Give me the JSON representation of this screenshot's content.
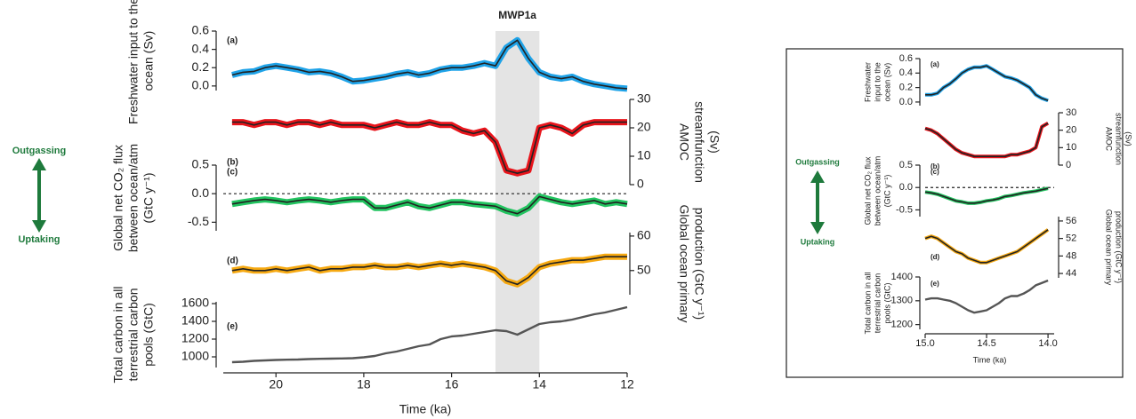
{
  "chart_data": [
    {
      "type": "line",
      "panel_label": "(a)",
      "ylabel": [
        "Freshwater input to the",
        "ocean (Sv)"
      ],
      "annotation": "MWP1a",
      "shade": [
        15,
        14
      ],
      "x": [
        21,
        20.75,
        20.5,
        20.25,
        20,
        19.75,
        19.5,
        19.25,
        19,
        18.75,
        18.5,
        18.25,
        18,
        17.75,
        17.5,
        17.25,
        17,
        16.75,
        16.5,
        16.25,
        16,
        15.75,
        15.5,
        15.25,
        15,
        14.75,
        14.5,
        14.25,
        14,
        13.75,
        13.5,
        13.25,
        13,
        12.75,
        12.5,
        12.25,
        12
      ],
      "xlim": [
        21.2,
        12
      ],
      "ylim": [
        -0.05,
        0.6
      ],
      "yticks": [
        {
          "value": 0,
          "label": "0.0"
        },
        0.2,
        0.4,
        0.6
      ],
      "y_axis_side": "left",
      "series": [
        {
          "color": "#1fa3e8",
          "line_color": "#222222",
          "values": [
            0.12,
            0.15,
            0.16,
            0.2,
            0.22,
            0.2,
            0.18,
            0.15,
            0.16,
            0.14,
            0.1,
            0.05,
            0.06,
            0.08,
            0.1,
            0.13,
            0.15,
            0.12,
            0.14,
            0.18,
            0.2,
            0.2,
            0.22,
            0.25,
            0.22,
            0.42,
            0.5,
            0.3,
            0.15,
            0.1,
            0.08,
            0.1,
            0.05,
            0.02,
            0,
            -0.02,
            -0.03
          ]
        }
      ]
    },
    {
      "type": "line",
      "panel_label": "(b)",
      "ylabel": [
        "AMOC",
        "streamfunction",
        "(Sv)"
      ],
      "x": [
        21,
        20.75,
        20.5,
        20.25,
        20,
        19.75,
        19.5,
        19.25,
        19,
        18.75,
        18.5,
        18.25,
        18,
        17.75,
        17.5,
        17.25,
        17,
        16.75,
        16.5,
        16.25,
        16,
        15.75,
        15.5,
        15.25,
        15,
        14.75,
        14.5,
        14.25,
        14,
        13.75,
        13.5,
        13.25,
        13,
        12.75,
        12.5,
        12.25,
        12
      ],
      "xlim": [
        21.2,
        12
      ],
      "ylim": [
        0,
        30
      ],
      "yticks": [
        0,
        10,
        20,
        30
      ],
      "y_axis_side": "right",
      "series": [
        {
          "color": "#e8141b",
          "line_color": "#222222",
          "values": [
            22,
            22,
            21,
            22,
            22,
            21,
            22,
            22,
            21,
            22,
            21,
            21,
            21,
            20,
            21,
            22,
            21,
            21,
            22,
            21,
            21,
            19,
            18,
            19,
            15,
            5,
            4,
            5,
            20,
            21,
            20,
            18,
            21,
            22,
            22,
            22,
            22
          ]
        }
      ]
    },
    {
      "type": "line",
      "panel_label": "(c)",
      "ylabel": [
        "Global net CO₂ flux",
        "between ocean/atm",
        "(GtC y⁻¹)"
      ],
      "arrow_labels": [
        "Outgassing",
        "Uptaking"
      ],
      "zero_line": true,
      "x": [
        21,
        20.75,
        20.5,
        20.25,
        20,
        19.75,
        19.5,
        19.25,
        19,
        18.75,
        18.5,
        18.25,
        18,
        17.75,
        17.5,
        17.25,
        17,
        16.75,
        16.5,
        16.25,
        16,
        15.75,
        15.5,
        15.25,
        15,
        14.75,
        14.5,
        14.25,
        14,
        13.75,
        13.5,
        13.25,
        13,
        12.75,
        12.5,
        12.25,
        12
      ],
      "xlim": [
        21.2,
        12
      ],
      "ylim": [
        -0.65,
        0.5
      ],
      "yticks": [
        -0.5,
        {
          "value": 0,
          "label": "0.0"
        },
        0.5
      ],
      "y_axis_side": "left",
      "series": [
        {
          "color": "#22c460",
          "line_color": "#222222",
          "values": [
            -0.18,
            -0.15,
            -0.12,
            -0.1,
            -0.12,
            -0.15,
            -0.12,
            -0.1,
            -0.12,
            -0.15,
            -0.12,
            -0.1,
            -0.1,
            -0.25,
            -0.25,
            -0.2,
            -0.15,
            -0.22,
            -0.25,
            -0.2,
            -0.15,
            -0.15,
            -0.18,
            -0.2,
            -0.22,
            -0.3,
            -0.35,
            -0.25,
            -0.05,
            -0.1,
            -0.15,
            -0.18,
            -0.15,
            -0.12,
            -0.18,
            -0.15,
            -0.18
          ]
        }
      ]
    },
    {
      "type": "line",
      "panel_label": "(d)",
      "ylabel": [
        "Global ocean primary",
        "production (GtC y⁻¹)"
      ],
      "x": [
        21,
        20.75,
        20.5,
        20.25,
        20,
        19.75,
        19.5,
        19.25,
        19,
        18.75,
        18.5,
        18.25,
        18,
        17.75,
        17.5,
        17.25,
        17,
        16.75,
        16.5,
        16.25,
        16,
        15.75,
        15.5,
        15.25,
        15,
        14.75,
        14.5,
        14.25,
        14,
        13.75,
        13.5,
        13.25,
        13,
        12.75,
        12.5,
        12.25,
        12
      ],
      "xlim": [
        21.2,
        12
      ],
      "ylim": [
        43,
        61
      ],
      "yticks": [
        50,
        60
      ],
      "y_axis_side": "right",
      "series": [
        {
          "color": "#f6a912",
          "line_color": "#222222",
          "values": [
            50,
            50.5,
            50,
            50,
            50.5,
            50,
            50.5,
            51,
            50,
            50.5,
            50.5,
            51,
            51,
            51.5,
            51,
            51,
            51.5,
            51,
            51.5,
            52,
            51.5,
            52,
            51.5,
            51,
            50,
            47,
            46,
            48,
            51,
            52,
            52.5,
            53,
            53,
            53.5,
            54,
            54,
            54
          ]
        }
      ]
    },
    {
      "type": "line",
      "panel_label": "(e)",
      "ylabel": [
        "Total carbon in all",
        "terrestrial carbon",
        "pools (GtC)"
      ],
      "xlabel": "Time (ka)",
      "x": [
        21,
        20.75,
        20.5,
        20.25,
        20,
        19.75,
        19.5,
        19.25,
        19,
        18.75,
        18.5,
        18.25,
        18,
        17.75,
        17.5,
        17.25,
        17,
        16.75,
        16.5,
        16.25,
        16,
        15.75,
        15.5,
        15.25,
        15,
        14.75,
        14.5,
        14.25,
        14,
        13.75,
        13.5,
        13.25,
        13,
        12.75,
        12.5,
        12.25,
        12
      ],
      "xlim": [
        21.2,
        12
      ],
      "xticks": [
        20,
        18,
        16,
        14,
        12
      ],
      "ylim": [
        880,
        1620
      ],
      "yticks": [
        1000,
        1200,
        1400,
        1600
      ],
      "y_axis_side": "left",
      "series": [
        {
          "color": "#555555",
          "values": [
            940,
            945,
            955,
            960,
            965,
            968,
            970,
            975,
            978,
            980,
            982,
            985,
            995,
            1010,
            1040,
            1060,
            1090,
            1120,
            1140,
            1200,
            1230,
            1240,
            1260,
            1280,
            1300,
            1290,
            1250,
            1310,
            1370,
            1390,
            1400,
            1420,
            1450,
            1480,
            1500,
            1530,
            1560
          ]
        }
      ]
    },
    {
      "type": "line",
      "panel_label": "(a)",
      "ylabel": [
        "Freshwater",
        "input to the",
        "ocean (Sv)"
      ],
      "x": [
        15,
        14.95,
        14.9,
        14.85,
        14.8,
        14.75,
        14.7,
        14.65,
        14.6,
        14.55,
        14.5,
        14.45,
        14.4,
        14.35,
        14.3,
        14.25,
        14.2,
        14.15,
        14.1,
        14.05,
        14
      ],
      "xlim": [
        15,
        13.95
      ],
      "ylim": [
        -0.05,
        0.6
      ],
      "yticks": [
        {
          "value": 0,
          "label": "0.0"
        },
        0.2,
        0.4,
        0.6
      ],
      "y_axis_side": "left",
      "series": [
        {
          "color": "#1fa3e8",
          "line_color": "#222222",
          "values": [
            0.1,
            0.1,
            0.12,
            0.2,
            0.25,
            0.32,
            0.4,
            0.45,
            0.48,
            0.48,
            0.5,
            0.45,
            0.4,
            0.35,
            0.33,
            0.3,
            0.25,
            0.2,
            0.1,
            0.05,
            0.02
          ]
        }
      ]
    },
    {
      "type": "line",
      "panel_label": "(b)",
      "ylabel": [
        "AMOC",
        "streamfunction",
        "(Sv)"
      ],
      "x": [
        15,
        14.95,
        14.9,
        14.85,
        14.8,
        14.75,
        14.7,
        14.65,
        14.6,
        14.55,
        14.5,
        14.45,
        14.4,
        14.35,
        14.3,
        14.25,
        14.2,
        14.15,
        14.1,
        14.05,
        14
      ],
      "xlim": [
        15,
        13.95
      ],
      "ylim": [
        0,
        30
      ],
      "yticks": [
        0,
        10,
        20,
        30
      ],
      "y_axis_side": "right",
      "series": [
        {
          "color": "#e8141b",
          "line_color": "#222222",
          "values": [
            21,
            20,
            18,
            15,
            12,
            9,
            7,
            6,
            5,
            5,
            5,
            5,
            5,
            5,
            6,
            6,
            7,
            8,
            10,
            22,
            24
          ]
        }
      ]
    },
    {
      "type": "line",
      "panel_label": "(c)",
      "ylabel": [
        "Global net CO₂ flux",
        "between ocean/atm",
        "(GtC y⁻¹)"
      ],
      "arrow_labels": [
        "Outgassing",
        "Uptaking"
      ],
      "zero_line": true,
      "x": [
        15,
        14.95,
        14.9,
        14.85,
        14.8,
        14.75,
        14.7,
        14.65,
        14.6,
        14.55,
        14.5,
        14.45,
        14.4,
        14.35,
        14.3,
        14.25,
        14.2,
        14.15,
        14.1,
        14.05,
        14
      ],
      "xlim": [
        15,
        13.95
      ],
      "ylim": [
        -0.65,
        0.5
      ],
      "yticks": [
        -0.5,
        {
          "value": 0,
          "label": "0.0"
        },
        0.5
      ],
      "y_axis_side": "left",
      "series": [
        {
          "color": "#22c460",
          "line_color": "#222222",
          "values": [
            -0.1,
            -0.12,
            -0.15,
            -0.2,
            -0.25,
            -0.3,
            -0.32,
            -0.35,
            -0.35,
            -0.33,
            -0.3,
            -0.28,
            -0.25,
            -0.2,
            -0.18,
            -0.15,
            -0.12,
            -0.1,
            -0.08,
            -0.05,
            -0.02
          ]
        }
      ]
    },
    {
      "type": "line",
      "panel_label": "(d)",
      "ylabel": [
        "Global ocean primary",
        "production (GtC y⁻¹)"
      ],
      "x": [
        15,
        14.95,
        14.9,
        14.85,
        14.8,
        14.75,
        14.7,
        14.65,
        14.6,
        14.55,
        14.5,
        14.45,
        14.4,
        14.35,
        14.3,
        14.25,
        14.2,
        14.15,
        14.1,
        14.05,
        14
      ],
      "xlim": [
        15,
        13.95
      ],
      "ylim": [
        43,
        57
      ],
      "yticks": [
        44,
        48,
        52,
        56
      ],
      "y_axis_side": "right",
      "series": [
        {
          "color": "#f6a912",
          "line_color": "#222222",
          "values": [
            52,
            52.5,
            52,
            51,
            50,
            49,
            48.5,
            47.5,
            47,
            46.5,
            46.5,
            47,
            47.5,
            48,
            48.5,
            49,
            50,
            51,
            52,
            53,
            54
          ]
        }
      ]
    },
    {
      "type": "line",
      "panel_label": "(e)",
      "ylabel": [
        "Total carbon in all",
        "terrestrial carbon",
        "pools (GtC)"
      ],
      "xlabel": "Time (ka)",
      "x": [
        15,
        14.95,
        14.9,
        14.85,
        14.8,
        14.75,
        14.7,
        14.65,
        14.6,
        14.55,
        14.5,
        14.45,
        14.4,
        14.35,
        14.3,
        14.25,
        14.2,
        14.15,
        14.1,
        14.05,
        14
      ],
      "xlim": [
        15,
        13.95
      ],
      "xticks": [
        {
          "value": 15,
          "label": "15.0"
        },
        14.5,
        {
          "value": 14,
          "label": "14.0"
        }
      ],
      "ylim": [
        1180,
        1400
      ],
      "yticks": [
        1200,
        1300,
        1400
      ],
      "y_axis_side": "left",
      "series": [
        {
          "color": "#555555",
          "values": [
            1305,
            1310,
            1310,
            1305,
            1300,
            1290,
            1275,
            1260,
            1250,
            1255,
            1260,
            1275,
            1290,
            1310,
            1320,
            1320,
            1330,
            1345,
            1365,
            1375,
            1385
          ]
        }
      ]
    }
  ]
}
